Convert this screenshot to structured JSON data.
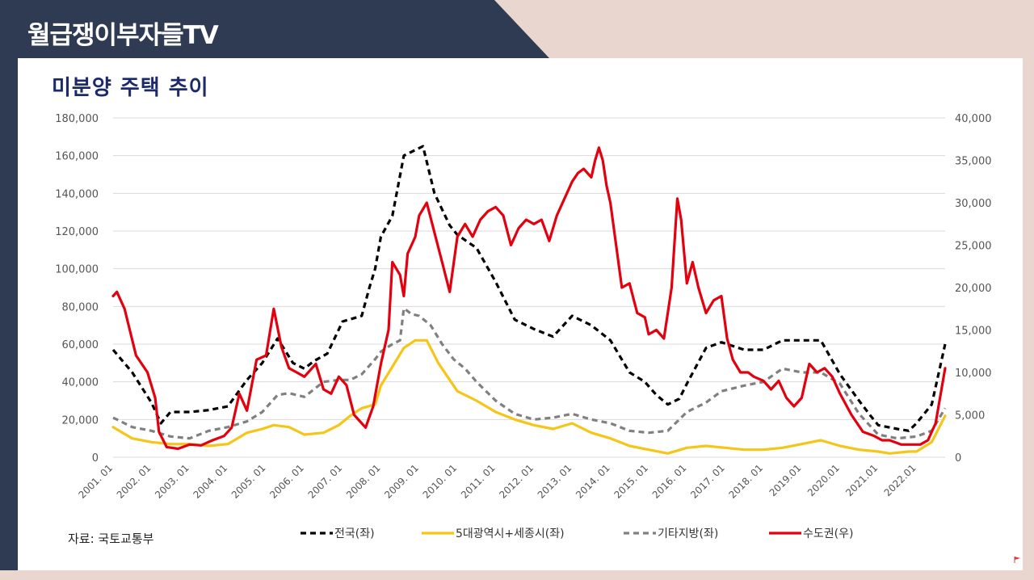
{
  "banner": {
    "title": "월급쟁이부자들TV"
  },
  "source": "자료: 국토교통부",
  "colors": {
    "banner": "#2f3b52",
    "national": "#000000",
    "metro5": "#f5c518",
    "other": "#808080",
    "capital": "#e3000f"
  },
  "chart_data": {
    "type": "line",
    "title": "미분양 주택 추이",
    "xlabel": "",
    "ylabel": "",
    "y2label": "",
    "x_ticks": [
      "2001. 01",
      "2002. 01",
      "2003. 01",
      "2004. 01",
      "2005. 01",
      "2006. 01",
      "2007. 01",
      "2008. 01",
      "2009. 01",
      "2010. 01",
      "2011. 01",
      "2012. 01",
      "2013. 01",
      "2014. 01",
      "2015. 01",
      "2016. 01",
      "2017. 01",
      "2018. 01",
      "2019.01",
      "2020.01",
      "2021.01",
      "2022.01"
    ],
    "x_range": [
      2001.0,
      2022.75
    ],
    "ylim_left": [
      0,
      180000
    ],
    "ylim_right": [
      0,
      40000
    ],
    "y_ticks_left": [
      "0",
      "20,000",
      "40,000",
      "60,000",
      "80,000",
      "100,000",
      "120,000",
      "140,000",
      "160,000",
      "180,000"
    ],
    "y_ticks_right": [
      "0",
      "5,000",
      "10,000",
      "15,000",
      "20,000",
      "25,000",
      "30,000",
      "35,000",
      "40,000"
    ],
    "grid": true,
    "legend_position": "bottom",
    "series": [
      {
        "name": "전국(좌)",
        "axis": "left",
        "style": "dashed",
        "color": "#000000",
        "x": [
          2001.0,
          2001.5,
          2002.0,
          2002.25,
          2002.5,
          2003.0,
          2003.5,
          2004.0,
          2004.5,
          2004.9,
          2005.3,
          2005.7,
          2006.0,
          2006.25,
          2006.6,
          2007.0,
          2007.5,
          2007.7,
          2007.85,
          2008.0,
          2008.3,
          2008.6,
          2008.9,
          2009.1,
          2009.4,
          2009.8,
          2010.0,
          2010.5,
          2011.0,
          2011.5,
          2012.0,
          2012.5,
          2013.0,
          2013.5,
          2014.0,
          2014.5,
          2014.9,
          2015.2,
          2015.5,
          2015.8,
          2016.0,
          2016.5,
          2016.9,
          2017.5,
          2018.0,
          2018.5,
          2019.0,
          2019.5,
          2020.0,
          2020.5,
          2020.8,
          2021.0,
          2021.5,
          2021.8,
          2022.0,
          2022.4,
          2022.75
        ],
        "values": [
          57000,
          45000,
          29000,
          18000,
          24000,
          24000,
          25000,
          27000,
          41000,
          50000,
          63000,
          50000,
          47000,
          51000,
          55000,
          72000,
          75000,
          90000,
          100000,
          117000,
          128000,
          160000,
          163000,
          165000,
          140000,
          123000,
          118000,
          111000,
          93000,
          73000,
          68000,
          64000,
          75000,
          70000,
          62000,
          45000,
          40000,
          33000,
          28000,
          31000,
          39000,
          58000,
          61000,
          57000,
          57000,
          62000,
          62000,
          62000,
          44000,
          30000,
          22000,
          17000,
          15000,
          14000,
          18000,
          28000,
          60000
        ]
      },
      {
        "name": "5대광역시+세종시(좌)",
        "axis": "left",
        "style": "solid",
        "color": "#f5c518",
        "x": [
          2001.0,
          2001.5,
          2002.0,
          2002.5,
          2003.0,
          2003.5,
          2004.0,
          2004.5,
          2004.9,
          2005.2,
          2005.6,
          2006.0,
          2006.5,
          2006.9,
          2007.2,
          2007.5,
          2007.85,
          2008.0,
          2008.3,
          2008.6,
          2008.9,
          2009.2,
          2009.5,
          2010.0,
          2010.5,
          2011.0,
          2011.5,
          2012.0,
          2012.5,
          2013.0,
          2013.5,
          2014.0,
          2014.5,
          2015.0,
          2015.5,
          2016.0,
          2016.5,
          2017.0,
          2017.5,
          2018.0,
          2018.5,
          2019.0,
          2019.5,
          2020.0,
          2020.5,
          2021.0,
          2021.3,
          2021.8,
          2022.0,
          2022.4,
          2022.75
        ],
        "values": [
          16000,
          10000,
          8000,
          7000,
          7000,
          6000,
          7000,
          13000,
          15000,
          17000,
          16000,
          12000,
          13000,
          17000,
          22000,
          26000,
          28000,
          38000,
          48000,
          58000,
          62000,
          62000,
          50000,
          35000,
          30000,
          24000,
          20000,
          17000,
          15000,
          18000,
          13000,
          10000,
          6000,
          4000,
          2000,
          5000,
          6000,
          5000,
          4000,
          4000,
          5000,
          7000,
          9000,
          6000,
          4000,
          3000,
          2000,
          3000,
          3000,
          8000,
          22000
        ]
      },
      {
        "name": "기타지방(좌)",
        "axis": "left",
        "style": "dashed",
        "color": "#808080",
        "x": [
          2001.0,
          2001.5,
          2002.0,
          2002.5,
          2003.0,
          2003.5,
          2004.0,
          2004.5,
          2004.9,
          2005.3,
          2005.6,
          2006.0,
          2006.5,
          2006.9,
          2007.2,
          2007.5,
          2007.85,
          2008.0,
          2008.3,
          2008.5,
          2008.6,
          2008.8,
          2009.0,
          2009.3,
          2009.6,
          2009.9,
          2010.2,
          2010.5,
          2011.0,
          2011.5,
          2012.0,
          2012.5,
          2013.0,
          2013.5,
          2014.0,
          2014.5,
          2015.0,
          2015.5,
          2016.0,
          2016.5,
          2016.9,
          2017.5,
          2018.0,
          2018.5,
          2019.0,
          2019.5,
          2020.0,
          2020.5,
          2021.0,
          2021.5,
          2022.0,
          2022.4,
          2022.75
        ],
        "values": [
          21000,
          16000,
          14000,
          11000,
          10000,
          14000,
          16000,
          19000,
          24000,
          33000,
          34000,
          32000,
          40000,
          41000,
          41000,
          44000,
          52000,
          56000,
          60000,
          62000,
          79000,
          76000,
          75000,
          70000,
          60000,
          52000,
          47000,
          40000,
          30000,
          23000,
          20000,
          21000,
          23000,
          20000,
          18000,
          14000,
          13000,
          14000,
          24000,
          29000,
          35000,
          38000,
          40000,
          47000,
          45000,
          45000,
          39000,
          23000,
          12000,
          10000,
          11000,
          14000,
          26000
        ]
      },
      {
        "name": "수도권(우)",
        "axis": "right",
        "style": "solid",
        "color": "#e3000f",
        "x": [
          2001.0,
          2001.1,
          2001.3,
          2001.6,
          2001.9,
          2002.1,
          2002.2,
          2002.4,
          2002.7,
          2003.0,
          2003.3,
          2003.6,
          2003.9,
          2004.1,
          2004.3,
          2004.5,
          2004.75,
          2005.0,
          2005.2,
          2005.4,
          2005.6,
          2005.8,
          2006.0,
          2006.3,
          2006.5,
          2006.7,
          2006.9,
          2007.1,
          2007.3,
          2007.6,
          2007.8,
          2008.0,
          2008.2,
          2008.3,
          2008.5,
          2008.6,
          2008.7,
          2008.8,
          2008.9,
          2009.0,
          2009.2,
          2009.4,
          2009.6,
          2009.8,
          2010.0,
          2010.2,
          2010.4,
          2010.6,
          2010.8,
          2011.0,
          2011.2,
          2011.4,
          2011.6,
          2011.8,
          2012.0,
          2012.2,
          2012.4,
          2012.6,
          2012.8,
          2013.0,
          2013.15,
          2013.3,
          2013.5,
          2013.6,
          2013.7,
          2013.8,
          2013.9,
          2014.0,
          2014.15,
          2014.3,
          2014.5,
          2014.7,
          2014.9,
          2015.0,
          2015.2,
          2015.4,
          2015.6,
          2015.75,
          2015.85,
          2016.0,
          2016.15,
          2016.3,
          2016.5,
          2016.7,
          2016.9,
          2017.05,
          2017.2,
          2017.4,
          2017.6,
          2017.75,
          2018.0,
          2018.2,
          2018.4,
          2018.6,
          2018.8,
          2019.0,
          2019.2,
          2019.4,
          2019.6,
          2019.8,
          2020.0,
          2020.3,
          2020.6,
          2020.9,
          2021.1,
          2021.3,
          2021.6,
          2021.9,
          2022.1,
          2022.3,
          2022.5,
          2022.75
        ],
        "values": [
          19000,
          19500,
          17500,
          12000,
          10000,
          7000,
          3000,
          1200,
          1000,
          1500,
          1400,
          2000,
          2500,
          3500,
          7500,
          5500,
          11500,
          12000,
          17500,
          13000,
          10500,
          10000,
          9500,
          11000,
          8000,
          7500,
          9500,
          8500,
          5000,
          3500,
          6000,
          11000,
          15000,
          23000,
          21500,
          19000,
          24000,
          25000,
          26000,
          28500,
          30000,
          26500,
          23000,
          19500,
          26000,
          27500,
          26000,
          28000,
          29000,
          29500,
          28500,
          25000,
          27000,
          28000,
          27500,
          28000,
          25500,
          28500,
          30500,
          32500,
          33500,
          34000,
          33000,
          35000,
          36500,
          35000,
          32000,
          30000,
          25000,
          20000,
          20500,
          17000,
          16500,
          14500,
          15000,
          14000,
          20000,
          30500,
          28000,
          20500,
          23000,
          20000,
          17000,
          18500,
          19000,
          14000,
          11500,
          10000,
          10000,
          9500,
          9000,
          8000,
          9000,
          7000,
          6000,
          7000,
          11000,
          10000,
          10500,
          9500,
          7500,
          5000,
          3000,
          2500,
          2000,
          2000,
          1500,
          1500,
          1500,
          2000,
          4000,
          10500
        ]
      }
    ]
  }
}
